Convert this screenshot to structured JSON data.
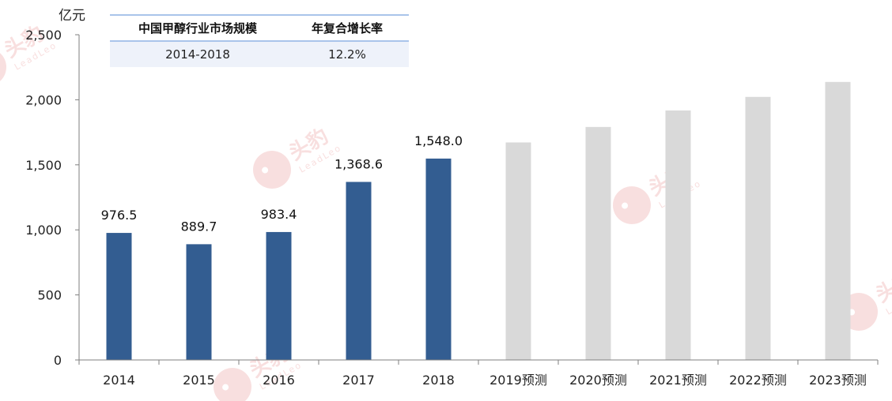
{
  "chart_data": {
    "type": "bar",
    "ylabel": "亿元",
    "ylim": [
      0,
      2500
    ],
    "yticks": [
      "0",
      "500",
      "1,000",
      "1,500",
      "2,000",
      "2,500"
    ],
    "ytick_values": [
      0,
      500,
      1000,
      1500,
      2000,
      2500
    ],
    "categories": [
      "2014",
      "2015",
      "2016",
      "2017",
      "2018",
      "2019预测",
      "2020预测",
      "2021预测",
      "2022预测",
      "2023预测"
    ],
    "values": [
      976.5,
      889.7,
      983.4,
      1368.6,
      1548.0,
      1672,
      1791,
      1918,
      2022,
      2137
    ],
    "data_labels": [
      "976.5",
      "889.7",
      "983.4",
      "1,368.6",
      "1,548.0",
      "",
      "",
      "",
      "",
      ""
    ],
    "bar_kind": [
      "actual",
      "actual",
      "actual",
      "actual",
      "actual",
      "forecast",
      "forecast",
      "forecast",
      "forecast",
      "forecast"
    ],
    "colors": {
      "actual": "#335d91",
      "forecast": "#d9d9d9",
      "axis": "#7f7f7f"
    }
  },
  "table": {
    "headers": [
      "中国甲醇行业市场规模",
      "年复合增长率"
    ],
    "rows": [
      [
        "2014-2018",
        "12.2%"
      ]
    ]
  },
  "watermark": {
    "cn": "头豹",
    "en": "LeadLeo",
    "color": "#f4c5c5"
  }
}
